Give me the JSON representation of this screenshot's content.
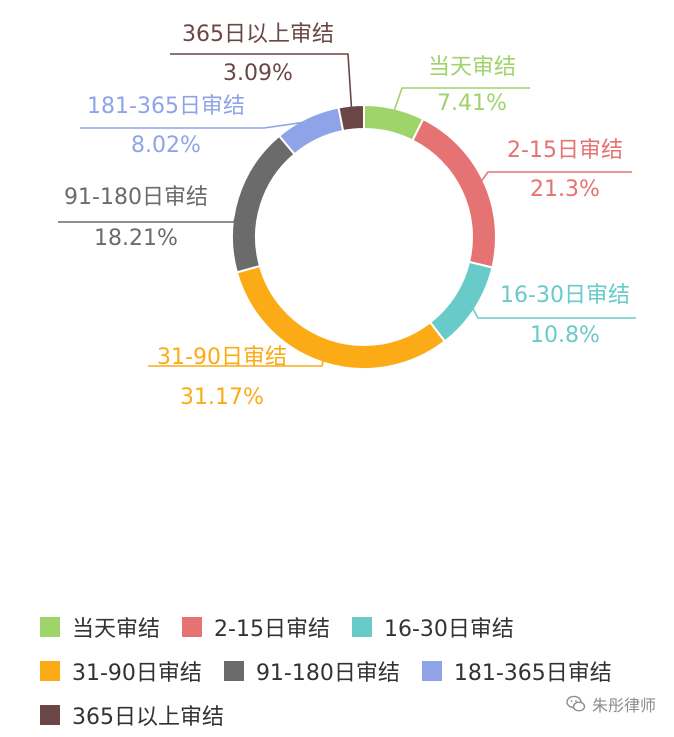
{
  "chart_data": {
    "type": "pie",
    "title": "",
    "legend_position": "bottom",
    "slices": [
      {
        "label": "当天审结",
        "percent_label": "7.41%",
        "value": 7.41,
        "color": "#9fd46a"
      },
      {
        "label": "2-15日审结",
        "percent_label": "21.3%",
        "value": 21.3,
        "color": "#e57373"
      },
      {
        "label": "16-30日审结",
        "percent_label": "10.8%",
        "value": 10.8,
        "color": "#68cbc9"
      },
      {
        "label": "31-90日审结",
        "percent_label": "31.17%",
        "value": 31.17,
        "color": "#fbab16"
      },
      {
        "label": "91-180日审结",
        "percent_label": "18.21%",
        "value": 18.21,
        "color": "#6b6b6b"
      },
      {
        "label": "181-365日审结",
        "percent_label": "8.02%",
        "value": 8.02,
        "color": "#8fa4e8"
      },
      {
        "label": "365日以上审结",
        "percent_label": "3.09%",
        "value": 3.09,
        "color": "#6b4646"
      }
    ]
  },
  "watermark": {
    "text": "朱彤律师",
    "icon": "wechat-icon"
  }
}
